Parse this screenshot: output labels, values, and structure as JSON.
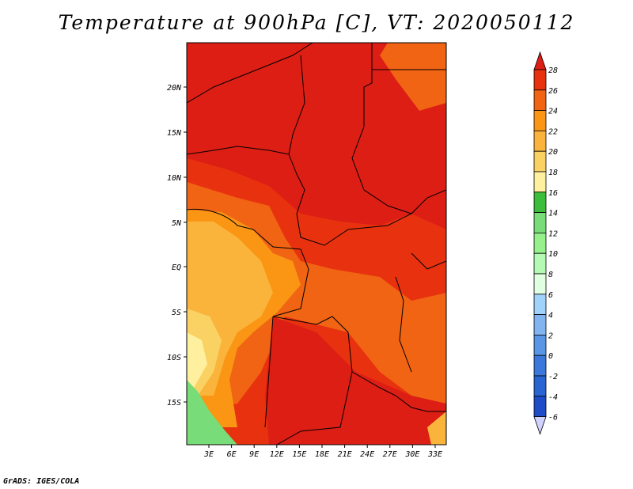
{
  "title": "Temperature at 900hPa [C], VT: 2020050112",
  "credit": "GrADS: IGES/COLA",
  "map": {
    "lat_ticks": [
      "20N",
      "15N",
      "10N",
      "5N",
      "EQ",
      "5S",
      "10S",
      "15S"
    ],
    "lon_ticks": [
      "3E",
      "6E",
      "9E",
      "12E",
      "15E",
      "18E",
      "21E",
      "24E",
      "27E",
      "30E",
      "33E"
    ]
  },
  "colorbar": {
    "labels": [
      "28",
      "26",
      "24",
      "22",
      "20",
      "18",
      "16",
      "14",
      "12",
      "10",
      "8",
      "6",
      "4",
      "2",
      "0",
      "-2",
      "-4",
      "-6"
    ],
    "colors": [
      "#dc1e14",
      "#e8320f",
      "#f06414",
      "#fa9614",
      "#fab43c",
      "#fad264",
      "#fff0a0",
      "#c8ffbe",
      "#3cbe3c",
      "#78dc78",
      "#96f08c",
      "#b4fab4",
      "#e1ffe1",
      "#a0d2fa",
      "#82b4f0",
      "#5a96e6",
      "#3c78dc",
      "#2864d2",
      "#1e4bc8",
      "#1432a0",
      "#0a1478",
      "#d2d2ff"
    ]
  }
}
